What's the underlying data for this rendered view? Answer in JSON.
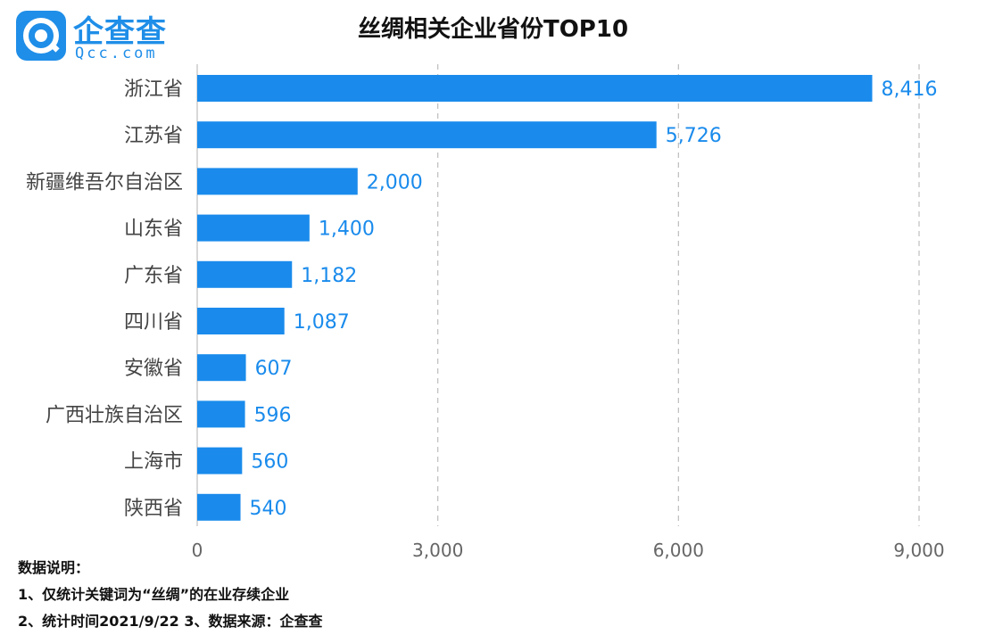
{
  "brand": {
    "name": "企查查",
    "sub": "Qcc.com"
  },
  "colors": {
    "bar": "#1a8bec",
    "value_label": "#1a8bec",
    "grid": "#bdbdbd",
    "brand": "#1f8ee8"
  },
  "chart_data": {
    "type": "bar",
    "orientation": "horizontal",
    "title": "丝绸相关企业省份TOP10",
    "categories": [
      "浙江省",
      "江苏省",
      "新疆维吾尔自治区",
      "山东省",
      "广东省",
      "四川省",
      "安徽省",
      "广西壮族自治区",
      "上海市",
      "陕西省"
    ],
    "values": [
      8416,
      5726,
      2000,
      1400,
      1182,
      1087,
      607,
      596,
      560,
      540
    ],
    "value_labels": [
      "8,416",
      "5,726",
      "2,000",
      "1,400",
      "1,182",
      "1,087",
      "607",
      "596",
      "560",
      "540"
    ],
    "xlim": [
      0,
      9000
    ],
    "xticks": [
      0,
      3000,
      6000,
      9000
    ],
    "xtick_labels": [
      "0",
      "3,000",
      "6,000",
      "9,000"
    ],
    "grid": "vertical-dashed",
    "legend": "none"
  },
  "notes": {
    "heading": "数据说明：",
    "line1": "1、仅统计关键词为“丝绸”的在业存续企业",
    "line2": "2、统计时间2021/9/22   3、数据来源：企查查"
  }
}
